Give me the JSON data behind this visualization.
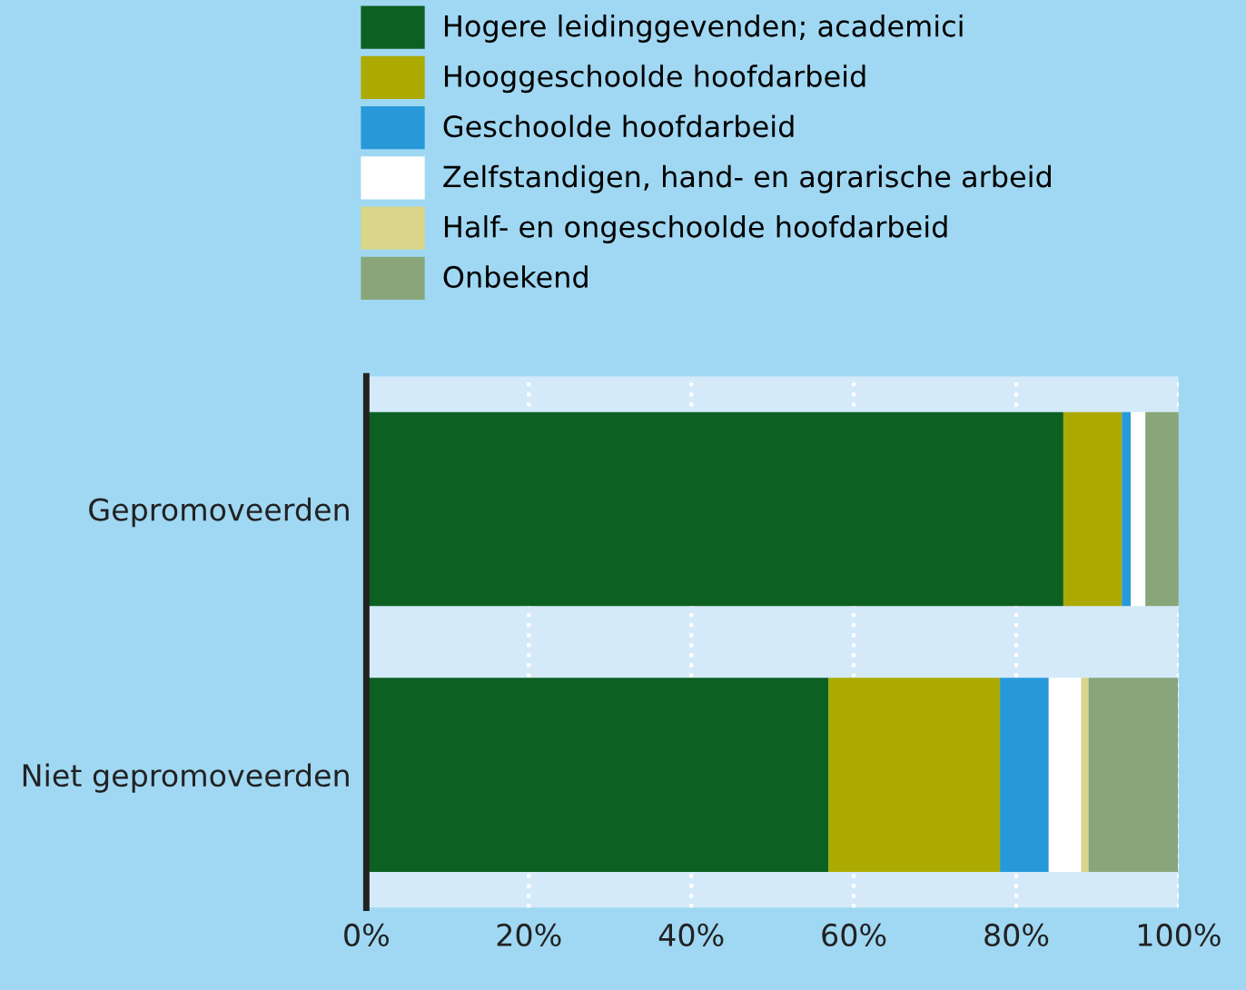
{
  "chart_data": {
    "type": "bar",
    "orientation": "horizontal",
    "stacked": true,
    "categories": [
      "Gepromoveerden",
      "Niet gepromoveerden"
    ],
    "series": [
      {
        "name": "Hogere leidinggevenden; academici",
        "color": "#0c6022",
        "values": [
          85.8,
          56.9
        ]
      },
      {
        "name": "Hooggeschoolde hoofdarbeid",
        "color": "#acaa00",
        "values": [
          7.2,
          21.1
        ]
      },
      {
        "name": "Geschoolde hoofdarbeid",
        "color": "#2899d8",
        "values": [
          1.1,
          6.0
        ]
      },
      {
        "name": "Zelfstandigen, hand- en agrarische arbeid",
        "color": "#ffffff",
        "values": [
          1.8,
          4.0
        ]
      },
      {
        "name": "Half- en ongeschoolde hoofdarbeid",
        "color": "#d9d68a",
        "values": [
          0,
          0.9
        ]
      },
      {
        "name": "Onbekend",
        "color": "#88a67a",
        "values": [
          4.1,
          11.0
        ]
      }
    ],
    "xlim": [
      0,
      100
    ],
    "xticks": [
      {
        "value": 0,
        "label": "0%"
      },
      {
        "value": 20,
        "label": "20%"
      },
      {
        "value": 40,
        "label": "40%"
      },
      {
        "value": 60,
        "label": "60%"
      },
      {
        "value": 80,
        "label": "80%"
      },
      {
        "value": 100,
        "label": "100%"
      }
    ],
    "grid": "x",
    "legend": "top",
    "bands": [
      {
        "axis": "x",
        "from": 0,
        "to": 100,
        "color": "#d4eaf9"
      }
    ]
  }
}
